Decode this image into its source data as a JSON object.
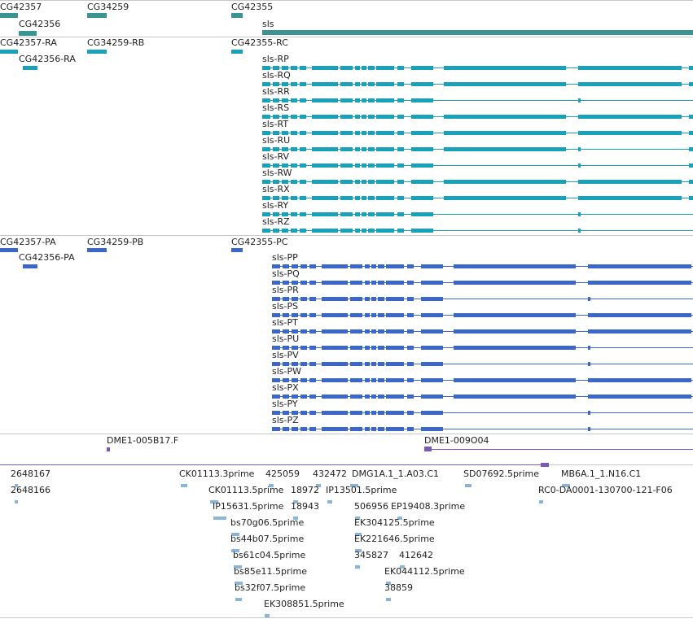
{
  "colors": {
    "gene": "#3a9494",
    "transcript_r": "#19a0ba",
    "transcript_p": "#3b68c8",
    "bac": "#7a5ab5",
    "est": "#8ab4d8"
  },
  "gene_track": {
    "genes": [
      "CG42357",
      "CG42356",
      "CG34259",
      "CG42355",
      "sls"
    ]
  },
  "transcript_track_r": {
    "left_labels": [
      "CG42357-RA",
      "CG42356-RA",
      "CG34259-RB",
      "CG42355-RC"
    ],
    "sls_isoforms": [
      "sls-RP",
      "sls-RQ",
      "sls-RR",
      "sls-RS",
      "sls-RT",
      "sls-RU",
      "sls-RV",
      "sls-RW",
      "sls-RX",
      "sls-RY",
      "sls-RZ"
    ]
  },
  "transcript_track_p": {
    "left_labels": [
      "CG42357-PA",
      "CG42356-PA",
      "CG34259-PB",
      "CG42355-PC"
    ],
    "sls_isoforms": [
      "sls-PP",
      "sls-PQ",
      "sls-PR",
      "sls-PS",
      "sls-PT",
      "sls-PU",
      "sls-PV",
      "sls-PW",
      "sls-PX",
      "sls-PY",
      "sls-PZ"
    ]
  },
  "bac_track": {
    "clones": [
      "DME1-005B17.F",
      "DME1-009O04"
    ]
  },
  "est_track": {
    "labels": [
      "2648167",
      "2648166",
      "CK01113.3prime",
      "CK01113.5prime",
      "425059",
      "432472",
      "18972",
      "DMG1A.1_1.A03.C1",
      "IP13501.5prime",
      "SD07692.5prime",
      "MB6A.1_1.N16.C1",
      "RC0-DA0001-130700-121-F06",
      "IP15631.5prime",
      "18943",
      "506956",
      "EP19408.3prime",
      "bs70g06.5prime",
      "EK304125.5prime",
      "bs44b07.5prime",
      "EK221646.5prime",
      "bs61c04.5prime",
      "345827",
      "412642",
      "bs85e11.5prime",
      "EK044112.5prime",
      "bs32f07.5prime",
      "38859",
      "EK308851.5prime"
    ]
  }
}
